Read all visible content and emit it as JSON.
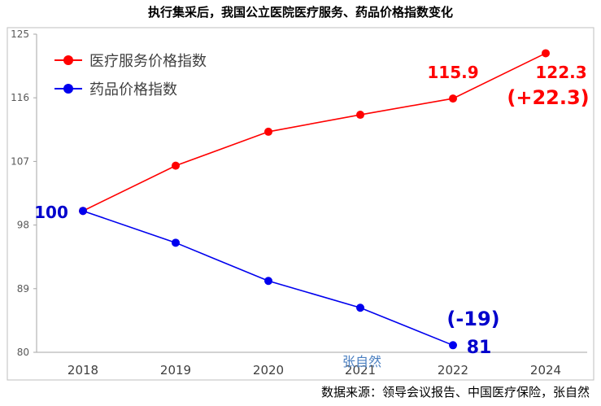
{
  "chart_data": {
    "type": "line",
    "title": "执行集采后，我国公立医院医疗服务、药品价格指数变化",
    "categories": [
      "2018",
      "2019",
      "2020",
      "2021",
      "2022",
      "2024"
    ],
    "ylim": [
      80,
      125
    ],
    "yticks": [
      "125",
      "116",
      "107",
      "98",
      "89",
      "80"
    ],
    "legend_position": "top-left",
    "grid": false,
    "series": [
      {
        "name": "医疗服务价格指数",
        "color": "#ff0000",
        "values": [
          100,
          106.4,
          111.2,
          113.6,
          115.9,
          122.3
        ]
      },
      {
        "name": "药品价格指数",
        "color": "#0000ee",
        "values": [
          100,
          95.5,
          90.1,
          86.3,
          81,
          null
        ]
      }
    ],
    "annotations": [
      {
        "text": "100",
        "color": "#0000cc"
      },
      {
        "text": "115.9",
        "color": "#ff0000"
      },
      {
        "text": "122.3",
        "color": "#ff0000"
      },
      {
        "text": "(+22.3)",
        "color": "#ff0000"
      },
      {
        "text": "(-19)",
        "color": "#0000cc"
      },
      {
        "text": "81",
        "color": "#0000cc"
      }
    ],
    "watermark": "张自然",
    "source": "数据来源：领导会议报告、中国医疗保险，张自然"
  }
}
